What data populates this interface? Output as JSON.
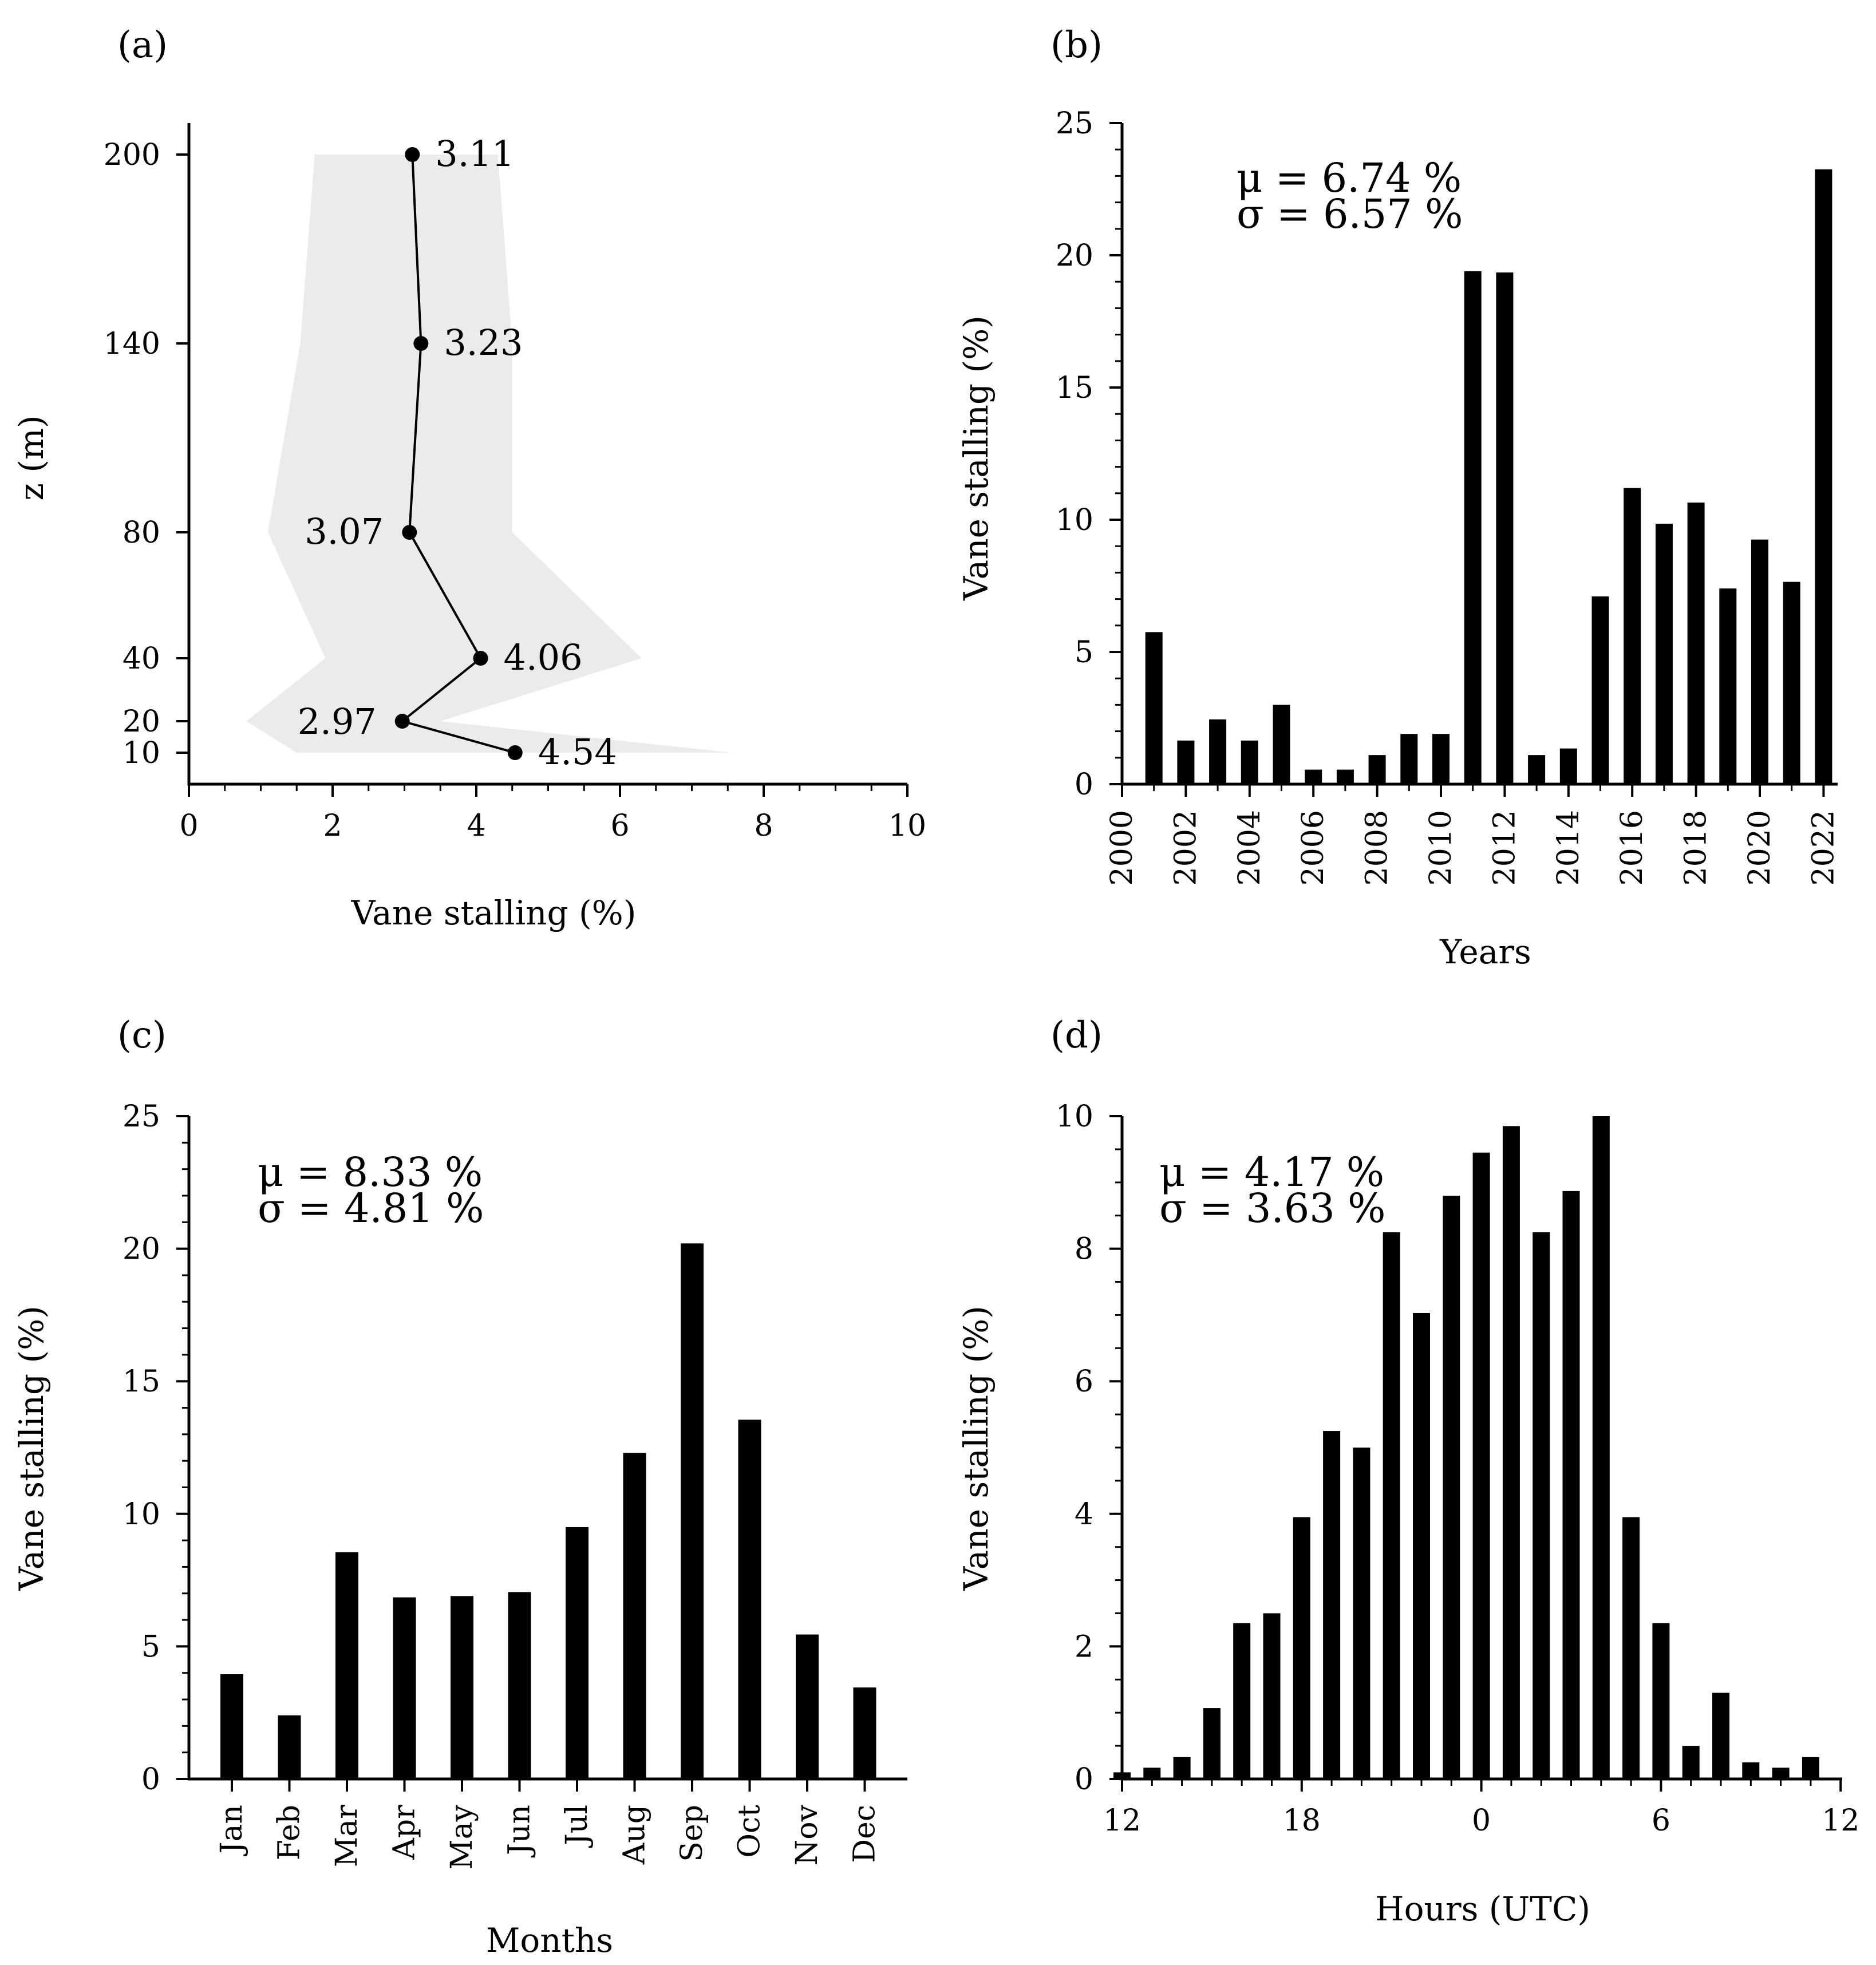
{
  "chart_data": [
    {
      "panel": "(a)",
      "type": "line",
      "xlabel": "Vane stalling (%)",
      "ylabel": "z (m)",
      "xlim": [
        0,
        10
      ],
      "xticks": [
        0,
        2,
        4,
        6,
        8,
        10
      ],
      "yticks": [
        10,
        20,
        40,
        80,
        140,
        200
      ],
      "points": [
        {
          "z": 200,
          "x": 3.11,
          "label": "3.11"
        },
        {
          "z": 140,
          "x": 3.23,
          "label": "3.23"
        },
        {
          "z": 80,
          "x": 3.07,
          "label": "3.07"
        },
        {
          "z": 40,
          "x": 4.06,
          "label": "4.06"
        },
        {
          "z": 20,
          "x": 2.97,
          "label": "2.97"
        },
        {
          "z": 10,
          "x": 4.54,
          "label": "4.54"
        }
      ],
      "band": {
        "color": "#ebebeb",
        "lower": [
          1.75,
          1.55,
          1.1,
          1.9,
          0.8,
          1.5
        ],
        "upper": [
          4.3,
          4.5,
          4.5,
          6.3,
          3.5,
          7.55
        ]
      }
    },
    {
      "panel": "(b)",
      "type": "bar",
      "xlabel": "Years",
      "ylabel": "Vane stalling (%)",
      "ylim": [
        0,
        25
      ],
      "yticks": [
        0,
        5,
        10,
        15,
        20,
        25
      ],
      "xlim": [
        2000,
        2022.5
      ],
      "xticks": [
        2000,
        2002,
        2004,
        2006,
        2008,
        2010,
        2012,
        2014,
        2016,
        2018,
        2020,
        2022
      ],
      "x": [
        2001,
        2002,
        2003,
        2004,
        2005,
        2006,
        2007,
        2008,
        2009,
        2010,
        2011,
        2012,
        2013,
        2014,
        2015,
        2016,
        2017,
        2018,
        2019,
        2020,
        2021,
        2022
      ],
      "values": [
        5.75,
        1.65,
        2.45,
        1.65,
        3.0,
        0.55,
        0.55,
        1.1,
        1.9,
        1.9,
        19.4,
        19.35,
        1.1,
        1.35,
        7.1,
        11.2,
        9.85,
        10.65,
        7.4,
        9.25,
        7.65,
        23.25
      ],
      "stats": {
        "mu": "μ = 6.74 %",
        "sigma": "σ = 6.57 %"
      }
    },
    {
      "panel": "(c)",
      "type": "bar",
      "xlabel": "Months",
      "ylabel": "Vane stalling (%)",
      "ylim": [
        0,
        25
      ],
      "yticks": [
        0,
        5,
        10,
        15,
        20,
        25
      ],
      "categories": [
        "Jan",
        "Feb",
        "Mar",
        "Apr",
        "May",
        "Jun",
        "Jul",
        "Aug",
        "Sep",
        "Oct",
        "Nov",
        "Dec"
      ],
      "values": [
        3.95,
        2.4,
        8.55,
        6.85,
        6.9,
        7.05,
        9.5,
        12.3,
        20.2,
        13.55,
        5.45,
        3.45
      ],
      "stats": {
        "mu": "μ = 8.33 %",
        "sigma": "σ = 4.81 %"
      }
    },
    {
      "panel": "(d)",
      "type": "bar",
      "xlabel": "Hours (UTC)",
      "ylabel": "Vane stalling (%)",
      "ylim": [
        0,
        10
      ],
      "yticks": [
        0,
        2,
        4,
        6,
        8,
        10
      ],
      "xtick_labels": [
        "12",
        "18",
        "0",
        "6",
        "12"
      ],
      "hours": [
        12,
        13,
        14,
        15,
        16,
        17,
        18,
        19,
        20,
        21,
        22,
        23,
        0,
        1,
        2,
        3,
        4,
        5,
        6,
        7,
        8,
        9,
        10,
        11
      ],
      "values": [
        0.1,
        0.17,
        0.33,
        1.07,
        2.35,
        2.5,
        3.95,
        5.25,
        5.0,
        8.25,
        7.03,
        8.8,
        9.45,
        9.85,
        8.25,
        8.87,
        10.0,
        3.95,
        2.35,
        0.5,
        1.3,
        0.25,
        0.17,
        0.33
      ],
      "stats": {
        "mu": "μ = 4.17 %",
        "sigma": "σ = 3.63 %"
      }
    }
  ]
}
